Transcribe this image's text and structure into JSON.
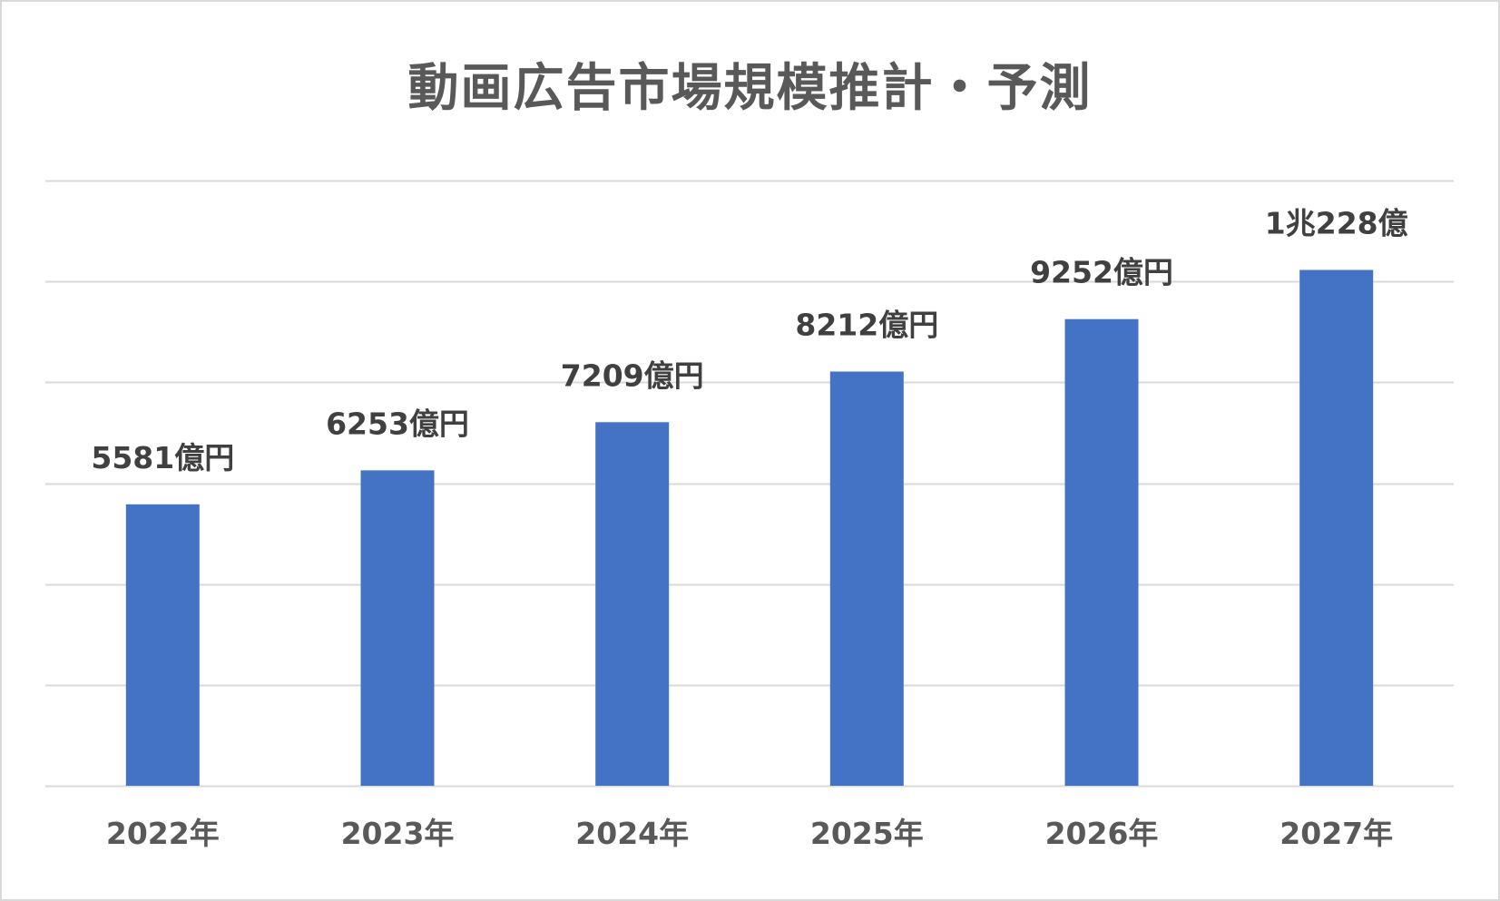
{
  "chart_data": {
    "type": "bar",
    "title": "動画広告市場規模推計・予測",
    "categories": [
      "2022年",
      "2023年",
      "2024年",
      "2025年",
      "2026年",
      "2027年"
    ],
    "values": [
      5581,
      6253,
      7209,
      8212,
      9252,
      10228
    ],
    "data_labels": [
      "5581億円",
      "6253億円",
      "7209億円",
      "8212億円",
      "9252億円",
      "1兆228億"
    ],
    "unit": "億円",
    "ylim": [
      0,
      12000
    ],
    "grid": true,
    "gridline_step": 2000,
    "legend": "none",
    "colors": {
      "bar": "#4472c4",
      "grid": "#d9d9d9",
      "title": "#595959",
      "label": "#404040"
    }
  }
}
